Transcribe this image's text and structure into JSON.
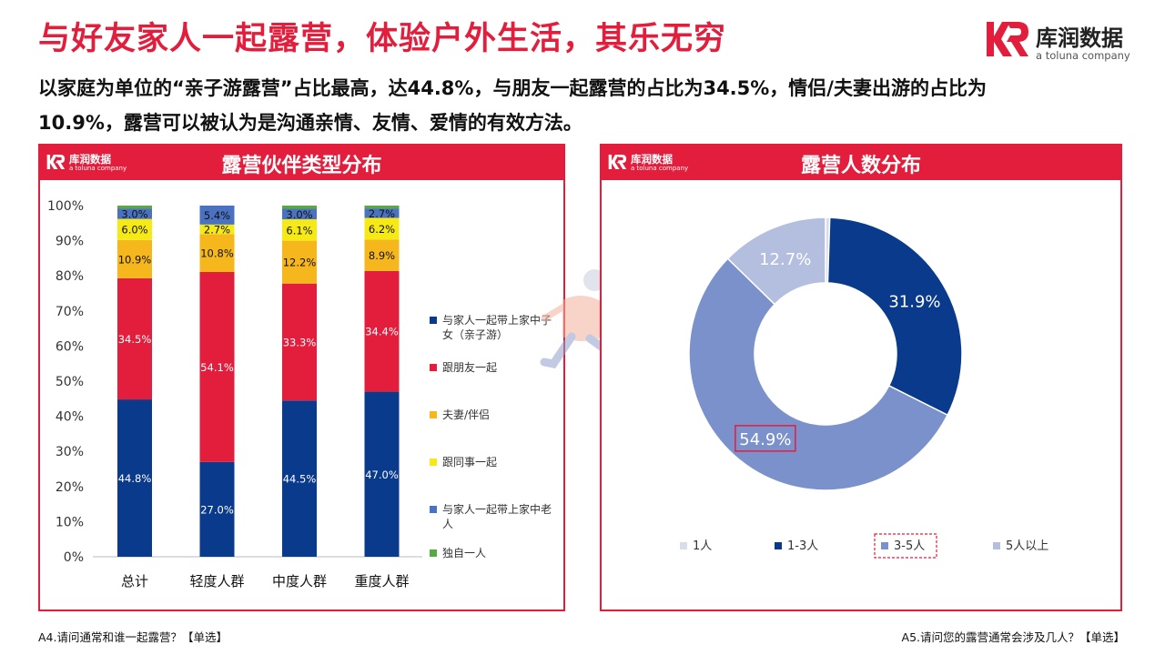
{
  "header": {
    "title": "与好友家人一起露营，体验户外生活，其乐无穷",
    "subtitle": "以家庭为单位的“亲子游露营”占比最高，达44.8%，与朋友一起露营的占比为34.5%，情侣/夫妻出游的占比为10.9%，露营可以被认为是沟通亲情、友情、爱情的有效方法。"
  },
  "brand": {
    "name": "库润数据",
    "tagline": "a toluna company",
    "color": "#e31e3c",
    "icon": "kr-logo-icon"
  },
  "panels": {
    "left": {
      "title": "露营伙伴类型分布",
      "footnote": "A4.请问通常和谁一起露营？【单选】"
    },
    "right": {
      "title": "露营人数分布",
      "footnote": "A5.请问您的露营通常会涉及几人？【单选】"
    }
  },
  "chart_data": [
    {
      "type": "bar",
      "stacked": true,
      "categories": [
        "总计",
        "轻度人群",
        "中度人群",
        "重度人群"
      ],
      "ylim": [
        0,
        100
      ],
      "yticks": [
        "0%",
        "10%",
        "20%",
        "30%",
        "40%",
        "50%",
        "60%",
        "70%",
        "80%",
        "90%",
        "100%"
      ],
      "grid": false,
      "legend_position": "right",
      "series": [
        {
          "name": "与家人一起带上家中子女（亲子游）",
          "color": "#0a3a8c",
          "label_color": "#ffffff",
          "values": [
            44.8,
            27.0,
            44.5,
            47.0
          ],
          "labels": [
            "44.8%",
            "27.0%",
            "44.5%",
            "47.0%"
          ]
        },
        {
          "name": "跟朋友一起",
          "color": "#e31e3c",
          "label_color": "#ffffff",
          "values": [
            34.5,
            54.1,
            33.3,
            34.4
          ],
          "labels": [
            "34.5%",
            "54.1%",
            "33.3%",
            "34.4%"
          ]
        },
        {
          "name": "夫妻/伴侣",
          "color": "#f5b71c",
          "label_color": "#111111",
          "values": [
            10.9,
            10.8,
            12.2,
            8.9
          ],
          "labels": [
            "10.9%",
            "10.8%",
            "12.2%",
            "8.9%"
          ]
        },
        {
          "name": "跟同事一起",
          "color": "#f6ea16",
          "label_color": "#111111",
          "values": [
            6.0,
            2.7,
            6.1,
            6.2
          ],
          "labels": [
            "6.0%",
            "2.7%",
            "6.1%",
            "6.2%"
          ]
        },
        {
          "name": "与家人一起带上家中老人",
          "color": "#4a72c0",
          "label_color": "#111111",
          "values": [
            3.0,
            5.4,
            3.0,
            2.7
          ],
          "labels": [
            "3.0%",
            "5.4%",
            "3.0%",
            "2.7%"
          ]
        },
        {
          "name": "独自一人",
          "color": "#5aa840",
          "label_color": "#111111",
          "values": [
            0.8,
            0.0,
            0.9,
            0.8
          ],
          "labels": [
            "",
            "",
            "",
            ""
          ]
        }
      ]
    },
    {
      "type": "pie",
      "donut": true,
      "legend_position": "bottom",
      "categories": [
        "1人",
        "1-3人",
        "3-5人",
        "5人以上"
      ],
      "values": [
        0.5,
        31.9,
        54.9,
        12.7
      ],
      "labels": [
        "",
        "31.9%",
        "54.9%",
        "12.7%"
      ],
      "colors": [
        "#d9dde8",
        "#0a3a8c",
        "#7a91cb",
        "#b4bfdf"
      ],
      "label_colors": [
        "#111111",
        "#ffffff",
        "#ffffff",
        "#ffffff"
      ],
      "highlight": "3-5人"
    }
  ]
}
